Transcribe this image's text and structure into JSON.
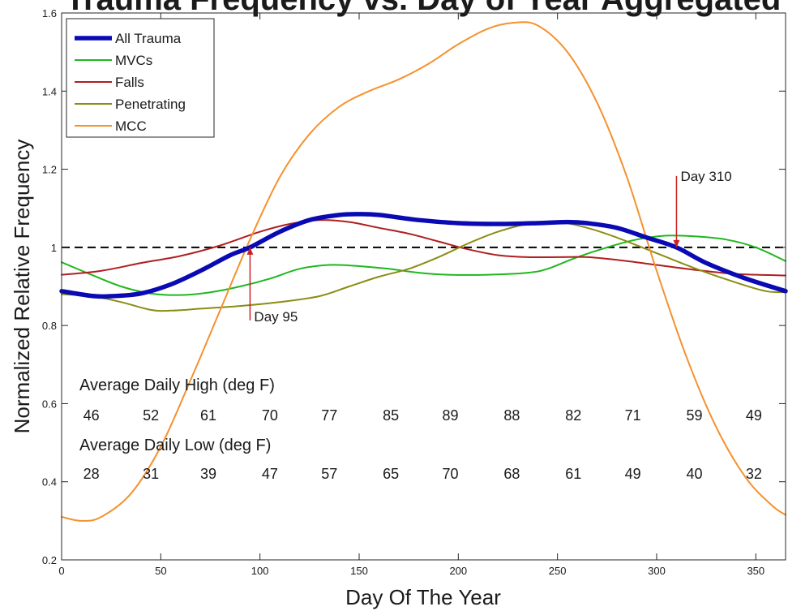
{
  "chart_data": {
    "type": "line",
    "title": "Trauma Frequency vs. Day of Year Aggregated",
    "xlabel": "Day Of The Year",
    "ylabel": "Normalized Relative Frequency",
    "xlim": [
      0,
      365
    ],
    "ylim": [
      0.2,
      1.6
    ],
    "xticks": [
      0,
      50,
      100,
      150,
      200,
      250,
      300,
      350
    ],
    "yticks": [
      0.2,
      0.4,
      0.6,
      0.8,
      1.0,
      1.2,
      1.4,
      1.6
    ],
    "ytick_labels": [
      "0.2",
      "0.4",
      "0.6",
      "0.8",
      "1",
      "1.2",
      "1.4",
      "1.6"
    ],
    "grid": false,
    "legend_position": "top-left",
    "reference_line": {
      "y": 1.0,
      "style": "dashed",
      "color": "#000000"
    },
    "series": [
      {
        "name": "All Trauma",
        "color": "#0a0ab4",
        "width": "thick",
        "points": [
          [
            0,
            0.888
          ],
          [
            15,
            0.876
          ],
          [
            25,
            0.875
          ],
          [
            40,
            0.882
          ],
          [
            55,
            0.905
          ],
          [
            70,
            0.94
          ],
          [
            85,
            0.98
          ],
          [
            95,
            1.0
          ],
          [
            110,
            1.04
          ],
          [
            125,
            1.07
          ],
          [
            140,
            1.083
          ],
          [
            150,
            1.085
          ],
          [
            160,
            1.083
          ],
          [
            180,
            1.07
          ],
          [
            200,
            1.062
          ],
          [
            220,
            1.06
          ],
          [
            240,
            1.062
          ],
          [
            255,
            1.065
          ],
          [
            265,
            1.062
          ],
          [
            280,
            1.05
          ],
          [
            295,
            1.025
          ],
          [
            310,
            1.0
          ],
          [
            325,
            0.96
          ],
          [
            345,
            0.92
          ],
          [
            365,
            0.888
          ]
        ]
      },
      {
        "name": "MVCs",
        "color": "#1fb71f",
        "width": "thin",
        "points": [
          [
            0,
            0.962
          ],
          [
            15,
            0.93
          ],
          [
            30,
            0.9
          ],
          [
            45,
            0.882
          ],
          [
            60,
            0.878
          ],
          [
            75,
            0.885
          ],
          [
            90,
            0.9
          ],
          [
            105,
            0.92
          ],
          [
            120,
            0.945
          ],
          [
            135,
            0.955
          ],
          [
            150,
            0.952
          ],
          [
            165,
            0.945
          ],
          [
            180,
            0.935
          ],
          [
            195,
            0.93
          ],
          [
            215,
            0.93
          ],
          [
            235,
            0.935
          ],
          [
            245,
            0.945
          ],
          [
            260,
            0.975
          ],
          [
            275,
            1.0
          ],
          [
            290,
            1.02
          ],
          [
            305,
            1.03
          ],
          [
            320,
            1.028
          ],
          [
            335,
            1.02
          ],
          [
            350,
            1.0
          ],
          [
            365,
            0.965
          ]
        ]
      },
      {
        "name": "Falls",
        "color": "#b01e1e",
        "width": "thin",
        "points": [
          [
            0,
            0.93
          ],
          [
            20,
            0.94
          ],
          [
            40,
            0.96
          ],
          [
            60,
            0.978
          ],
          [
            80,
            1.005
          ],
          [
            100,
            1.04
          ],
          [
            115,
            1.06
          ],
          [
            130,
            1.07
          ],
          [
            145,
            1.065
          ],
          [
            160,
            1.05
          ],
          [
            175,
            1.035
          ],
          [
            190,
            1.015
          ],
          [
            205,
            0.995
          ],
          [
            220,
            0.98
          ],
          [
            235,
            0.975
          ],
          [
            250,
            0.975
          ],
          [
            265,
            0.975
          ],
          [
            280,
            0.968
          ],
          [
            300,
            0.955
          ],
          [
            320,
            0.942
          ],
          [
            340,
            0.932
          ],
          [
            365,
            0.928
          ]
        ]
      },
      {
        "name": "Penetrating",
        "color": "#8c8c14",
        "width": "thin",
        "points": [
          [
            0,
            0.88
          ],
          [
            15,
            0.875
          ],
          [
            30,
            0.86
          ],
          [
            45,
            0.84
          ],
          [
            55,
            0.838
          ],
          [
            70,
            0.843
          ],
          [
            90,
            0.85
          ],
          [
            110,
            0.86
          ],
          [
            130,
            0.875
          ],
          [
            145,
            0.9
          ],
          [
            160,
            0.925
          ],
          [
            175,
            0.945
          ],
          [
            190,
            0.975
          ],
          [
            205,
            1.01
          ],
          [
            220,
            1.04
          ],
          [
            235,
            1.06
          ],
          [
            250,
            1.065
          ],
          [
            265,
            1.05
          ],
          [
            280,
            1.025
          ],
          [
            300,
            0.985
          ],
          [
            320,
            0.945
          ],
          [
            340,
            0.91
          ],
          [
            355,
            0.888
          ],
          [
            365,
            0.885
          ]
        ]
      },
      {
        "name": "MCC",
        "color": "#f5912e",
        "width": "thin",
        "points": [
          [
            0,
            0.31
          ],
          [
            10,
            0.3
          ],
          [
            20,
            0.31
          ],
          [
            35,
            0.37
          ],
          [
            50,
            0.49
          ],
          [
            65,
            0.66
          ],
          [
            80,
            0.84
          ],
          [
            95,
            1.02
          ],
          [
            110,
            1.18
          ],
          [
            125,
            1.29
          ],
          [
            140,
            1.36
          ],
          [
            155,
            1.4
          ],
          [
            170,
            1.43
          ],
          [
            185,
            1.47
          ],
          [
            200,
            1.52
          ],
          [
            215,
            1.56
          ],
          [
            228,
            1.575
          ],
          [
            240,
            1.568
          ],
          [
            255,
            1.5
          ],
          [
            270,
            1.37
          ],
          [
            285,
            1.18
          ],
          [
            300,
            0.94
          ],
          [
            315,
            0.72
          ],
          [
            330,
            0.54
          ],
          [
            345,
            0.41
          ],
          [
            358,
            0.34
          ],
          [
            365,
            0.315
          ]
        ]
      }
    ],
    "annotations": [
      {
        "label": "Day 95",
        "x": 95,
        "y": 1.0,
        "color": "#cc2020",
        "side": "below"
      },
      {
        "label": "Day 310",
        "x": 310,
        "y": 1.0,
        "color": "#cc2020",
        "side": "above"
      }
    ],
    "temperature_table": {
      "high_label": "Average Daily High (deg F)",
      "low_label": "Average Daily Low (deg F)",
      "month_days": [
        15,
        45,
        74,
        105,
        135,
        166,
        196,
        227,
        258,
        288,
        319,
        349
      ],
      "highs": [
        "46",
        "52",
        "61",
        "70",
        "77",
        "85",
        "89",
        "88",
        "82",
        "71",
        "59",
        "49"
      ],
      "lows": [
        "28",
        "31",
        "39",
        "47",
        "57",
        "65",
        "70",
        "68",
        "61",
        "49",
        "40",
        "32"
      ]
    }
  }
}
